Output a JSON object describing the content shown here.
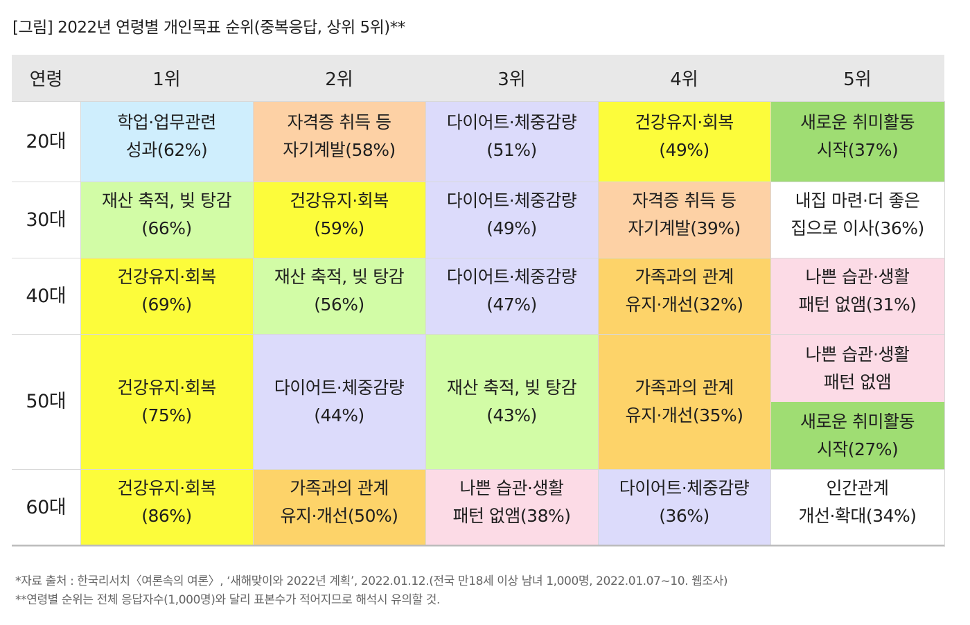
{
  "title": "[그림] 2022년 연령별 개인목표 순위(중복응답, 상위 5위)**",
  "header": [
    "연령",
    "1위",
    "2위",
    "3위",
    "4위",
    "5위"
  ],
  "colors": {
    "lightblue": "#cfeefd",
    "peach": "#fdd1a5",
    "lavender": "#dcdbfb",
    "yellow": "#fcfc3b",
    "green": "#9fdd73",
    "lightgreen": "#d2fca6",
    "orange": "#fdd369",
    "pink": "#fcdbe6",
    "white": "#ffffff"
  },
  "rows": [
    {
      "age": "20대",
      "cells": [
        {
          "l1": "학업·업무관련",
          "l2": "성과(62%)",
          "color": "#cfeefd"
        },
        {
          "l1": "자격증 취득 등",
          "l2": "자기계발(58%)",
          "color": "#fdd1a5"
        },
        {
          "l1": "다이어트·체중감량",
          "l2": "(51%)",
          "color": "#dcdbfb"
        },
        {
          "l1": "건강유지·회복",
          "l2": "(49%)",
          "color": "#fcfc3b"
        },
        {
          "l1": "새로운 취미활동",
          "l2": "시작(37%)",
          "color": "#9fdd73"
        }
      ]
    },
    {
      "age": "30대",
      "cells": [
        {
          "l1": "재산 축적, 빚 탕감",
          "l2": "(66%)",
          "color": "#d2fca6"
        },
        {
          "l1": "건강유지·회복",
          "l2": "(59%)",
          "color": "#fcfc3b"
        },
        {
          "l1": "다이어트·체중감량",
          "l2": "(49%)",
          "color": "#dcdbfb"
        },
        {
          "l1": "자격증 취득 등",
          "l2": "자기계발(39%)",
          "color": "#fdd1a5"
        },
        {
          "l1": "내집 마련·더 좋은",
          "l2": "집으로 이사(36%)",
          "color": "#ffffff"
        }
      ]
    },
    {
      "age": "40대",
      "cells": [
        {
          "l1": "건강유지·회복",
          "l2": "(69%)",
          "color": "#fcfc3b"
        },
        {
          "l1": "재산 축적, 빚 탕감",
          "l2": "(56%)",
          "color": "#d2fca6"
        },
        {
          "l1": "다이어트·체중감량",
          "l2": "(47%)",
          "color": "#dcdbfb"
        },
        {
          "l1": "가족과의 관계",
          "l2": "유지·개선(32%)",
          "color": "#fdd369"
        },
        {
          "l1": "나쁜 습관·생활",
          "l2": "패턴 없앰(31%)",
          "color": "#fcdbe6"
        }
      ]
    },
    {
      "age": "50대",
      "cells": [
        {
          "l1": "건강유지·회복",
          "l2": "(75%)",
          "color": "#fcfc3b"
        },
        {
          "l1": "다이어트·체중감량",
          "l2": "(44%)",
          "color": "#dcdbfb"
        },
        {
          "l1": "재산 축적, 빚 탕감",
          "l2": "(43%)",
          "color": "#d2fca6"
        },
        {
          "l1": "가족과의 관계",
          "l2": "유지·개선(35%)",
          "color": "#fdd369"
        }
      ],
      "split5": [
        {
          "l1": "나쁜 습관·생활",
          "l2": "패턴 없앰",
          "color": "#fcdbe6"
        },
        {
          "l1": "새로운 취미활동",
          "l2": "시작(27%)",
          "color": "#9fdd73"
        }
      ]
    },
    {
      "age": "60대",
      "cells": [
        {
          "l1": "건강유지·회복",
          "l2": "(86%)",
          "color": "#fcfc3b"
        },
        {
          "l1": "가족과의 관계",
          "l2": "유지·개선(50%)",
          "color": "#fdd369"
        },
        {
          "l1": "나쁜 습관·생활",
          "l2": "패턴 없앰(38%)",
          "color": "#fcdbe6"
        },
        {
          "l1": "다이어트·체중감량",
          "l2": "(36%)",
          "color": "#dcdbfb"
        },
        {
          "l1": "인간관계",
          "l2": "개선·확대(34%)",
          "color": "#ffffff"
        }
      ]
    }
  ],
  "notes": [
    "*자료 출처 : 한국리서치〈여론속의 여론〉, ‘새해맞이와 2022년 계획’, 2022.01.12.(전국 만18세 이상 남녀 1,000명, 2022.01.07~10. 웹조사)",
    "**연령별 순위는 전체 응답자수(1,000명)와 달리 표본수가 적어지므로 해석시 유의할 것."
  ]
}
